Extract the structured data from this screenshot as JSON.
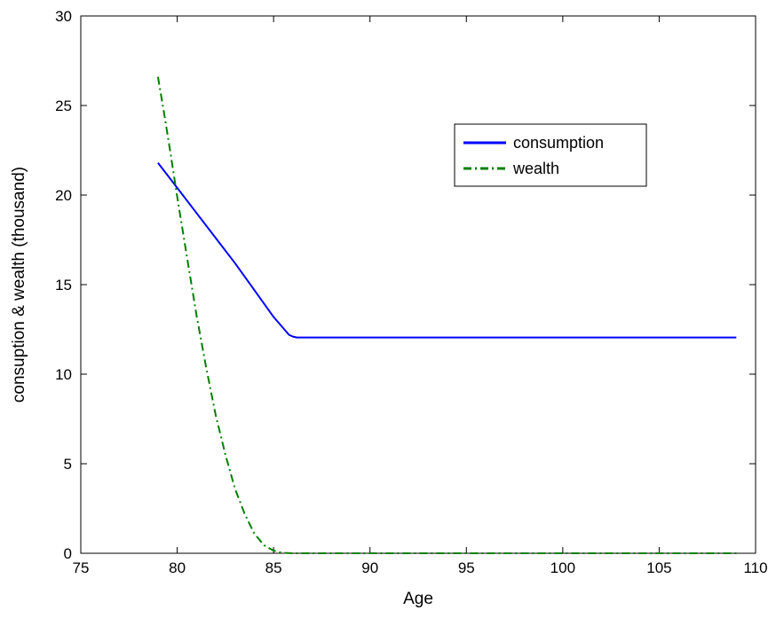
{
  "chart_data": {
    "type": "line",
    "title": "",
    "xlabel": "Age",
    "ylabel": "consuption & wealth (thousand)",
    "xlim": [
      75,
      110
    ],
    "ylim": [
      0,
      30
    ],
    "xticks": [
      75,
      80,
      85,
      90,
      95,
      100,
      105,
      110
    ],
    "yticks": [
      0,
      5,
      10,
      15,
      20,
      25,
      30
    ],
    "grid": false,
    "legend_position": "top-right",
    "series": [
      {
        "name": "consumption",
        "color": "#0000ff",
        "line_style": "solid",
        "x": [
          79,
          80,
          81,
          82,
          83,
          84,
          85,
          85.8,
          86,
          86.2,
          87,
          88,
          89,
          90,
          95,
          100,
          105,
          109
        ],
        "y": [
          21.8,
          20.4,
          19.0,
          17.6,
          16.2,
          14.7,
          13.2,
          12.2,
          12.1,
          12.05,
          12.05,
          12.05,
          12.05,
          12.05,
          12.05,
          12.05,
          12.05,
          12.05
        ]
      },
      {
        "name": "wealth",
        "color": "#008000",
        "line_style": "dashdot",
        "x": [
          79,
          79.3,
          79.6,
          80,
          80.5,
          81,
          81.5,
          82,
          82.5,
          83,
          83.5,
          84,
          84.5,
          85,
          85.3,
          85.6,
          86,
          87,
          90,
          95,
          100,
          105,
          109
        ],
        "y": [
          26.6,
          24.7,
          22.7,
          19.9,
          16.6,
          13.3,
          10.4,
          7.7,
          5.5,
          3.6,
          2.2,
          1.1,
          0.45,
          0.15,
          0.06,
          0.02,
          0,
          0,
          0,
          0,
          0,
          0,
          0
        ]
      }
    ]
  }
}
